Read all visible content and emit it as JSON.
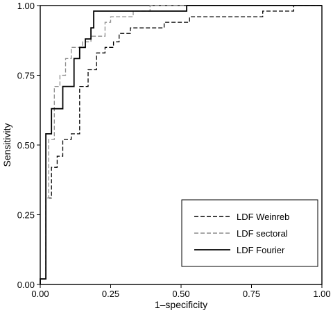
{
  "chart_data": {
    "type": "line",
    "title": "",
    "xlabel": "1–specificity",
    "ylabel": "Sensitivity",
    "xlim": [
      0,
      1
    ],
    "ylim": [
      0,
      1
    ],
    "xticks": [
      "0.00",
      "0.25",
      "0.50",
      "0.75",
      "1.00"
    ],
    "yticks": [
      "0.00",
      "0.25",
      "0.50",
      "0.75",
      "1.00"
    ],
    "grid": false,
    "legend_position": "bottom-right",
    "series": [
      {
        "name": "LDF Weinreb",
        "color": "#000000",
        "dash": "dashed",
        "points": [
          [
            0.0,
            0.0
          ],
          [
            0.0,
            0.02
          ],
          [
            0.02,
            0.02
          ],
          [
            0.02,
            0.31
          ],
          [
            0.04,
            0.31
          ],
          [
            0.04,
            0.42
          ],
          [
            0.06,
            0.42
          ],
          [
            0.06,
            0.46
          ],
          [
            0.08,
            0.46
          ],
          [
            0.08,
            0.52
          ],
          [
            0.11,
            0.52
          ],
          [
            0.11,
            0.54
          ],
          [
            0.14,
            0.54
          ],
          [
            0.14,
            0.71
          ],
          [
            0.17,
            0.71
          ],
          [
            0.17,
            0.77
          ],
          [
            0.2,
            0.77
          ],
          [
            0.2,
            0.83
          ],
          [
            0.23,
            0.83
          ],
          [
            0.23,
            0.85
          ],
          [
            0.26,
            0.85
          ],
          [
            0.26,
            0.87
          ],
          [
            0.28,
            0.87
          ],
          [
            0.28,
            0.9
          ],
          [
            0.32,
            0.9
          ],
          [
            0.32,
            0.92
          ],
          [
            0.44,
            0.92
          ],
          [
            0.44,
            0.94
          ],
          [
            0.53,
            0.94
          ],
          [
            0.53,
            0.96
          ],
          [
            0.79,
            0.96
          ],
          [
            0.79,
            0.98
          ],
          [
            0.9,
            0.98
          ],
          [
            0.9,
            1.0
          ],
          [
            1.0,
            1.0
          ]
        ]
      },
      {
        "name": "LDF sectoral",
        "color": "#8c8c8c",
        "dash": "dashed",
        "points": [
          [
            0.0,
            0.0
          ],
          [
            0.0,
            0.02
          ],
          [
            0.02,
            0.02
          ],
          [
            0.02,
            0.31
          ],
          [
            0.03,
            0.31
          ],
          [
            0.03,
            0.52
          ],
          [
            0.05,
            0.52
          ],
          [
            0.05,
            0.71
          ],
          [
            0.07,
            0.71
          ],
          [
            0.07,
            0.75
          ],
          [
            0.09,
            0.75
          ],
          [
            0.09,
            0.81
          ],
          [
            0.11,
            0.81
          ],
          [
            0.11,
            0.85
          ],
          [
            0.15,
            0.85
          ],
          [
            0.15,
            0.87
          ],
          [
            0.18,
            0.87
          ],
          [
            0.18,
            0.89
          ],
          [
            0.23,
            0.89
          ],
          [
            0.23,
            0.94
          ],
          [
            0.25,
            0.94
          ],
          [
            0.25,
            0.96
          ],
          [
            0.33,
            0.96
          ],
          [
            0.33,
            0.98
          ],
          [
            0.39,
            0.98
          ],
          [
            0.39,
            1.0
          ],
          [
            1.0,
            1.0
          ]
        ]
      },
      {
        "name": "LDF Fourier",
        "color": "#000000",
        "dash": "solid",
        "points": [
          [
            0.0,
            0.0
          ],
          [
            0.0,
            0.02
          ],
          [
            0.02,
            0.02
          ],
          [
            0.02,
            0.54
          ],
          [
            0.04,
            0.54
          ],
          [
            0.04,
            0.63
          ],
          [
            0.08,
            0.63
          ],
          [
            0.08,
            0.71
          ],
          [
            0.12,
            0.71
          ],
          [
            0.12,
            0.81
          ],
          [
            0.14,
            0.81
          ],
          [
            0.14,
            0.85
          ],
          [
            0.16,
            0.85
          ],
          [
            0.16,
            0.88
          ],
          [
            0.18,
            0.88
          ],
          [
            0.18,
            0.92
          ],
          [
            0.19,
            0.92
          ],
          [
            0.19,
            0.98
          ],
          [
            0.52,
            0.98
          ],
          [
            0.52,
            1.0
          ],
          [
            1.0,
            1.0
          ]
        ]
      }
    ]
  }
}
